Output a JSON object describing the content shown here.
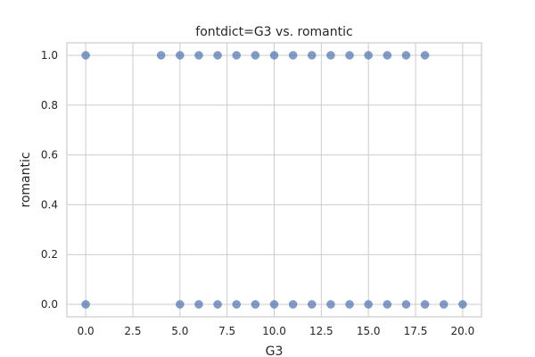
{
  "chart_data": {
    "type": "scatter",
    "title": "fontdict=G3 vs. romantic",
    "xlabel": "G3",
    "ylabel": "romantic",
    "xlim": [
      -1,
      21
    ],
    "ylim": [
      -0.05,
      1.05
    ],
    "xticks": [
      0,
      2.5,
      5,
      7.5,
      10,
      12.5,
      15,
      17.5,
      20
    ],
    "xtick_labels": [
      "0.0",
      "2.5",
      "5.0",
      "7.5",
      "10.0",
      "12.5",
      "15.0",
      "17.5",
      "20.0"
    ],
    "yticks": [
      0,
      0.2,
      0.4,
      0.6,
      0.8,
      1.0
    ],
    "ytick_labels": [
      "0.0",
      "0.2",
      "0.4",
      "0.6",
      "0.8",
      "1.0"
    ],
    "grid": true,
    "color": "#4c72b0",
    "points": [
      {
        "x": 0,
        "y": 1
      },
      {
        "x": 4,
        "y": 1
      },
      {
        "x": 5,
        "y": 1
      },
      {
        "x": 6,
        "y": 1
      },
      {
        "x": 7,
        "y": 1
      },
      {
        "x": 8,
        "y": 1
      },
      {
        "x": 9,
        "y": 1
      },
      {
        "x": 10,
        "y": 1
      },
      {
        "x": 11,
        "y": 1
      },
      {
        "x": 12,
        "y": 1
      },
      {
        "x": 13,
        "y": 1
      },
      {
        "x": 14,
        "y": 1
      },
      {
        "x": 15,
        "y": 1
      },
      {
        "x": 16,
        "y": 1
      },
      {
        "x": 17,
        "y": 1
      },
      {
        "x": 18,
        "y": 1
      },
      {
        "x": 0,
        "y": 0
      },
      {
        "x": 5,
        "y": 0
      },
      {
        "x": 6,
        "y": 0
      },
      {
        "x": 7,
        "y": 0
      },
      {
        "x": 8,
        "y": 0
      },
      {
        "x": 9,
        "y": 0
      },
      {
        "x": 10,
        "y": 0
      },
      {
        "x": 11,
        "y": 0
      },
      {
        "x": 12,
        "y": 0
      },
      {
        "x": 13,
        "y": 0
      },
      {
        "x": 14,
        "y": 0
      },
      {
        "x": 15,
        "y": 0
      },
      {
        "x": 16,
        "y": 0
      },
      {
        "x": 17,
        "y": 0
      },
      {
        "x": 18,
        "y": 0
      },
      {
        "x": 19,
        "y": 0
      },
      {
        "x": 20,
        "y": 0
      }
    ]
  }
}
